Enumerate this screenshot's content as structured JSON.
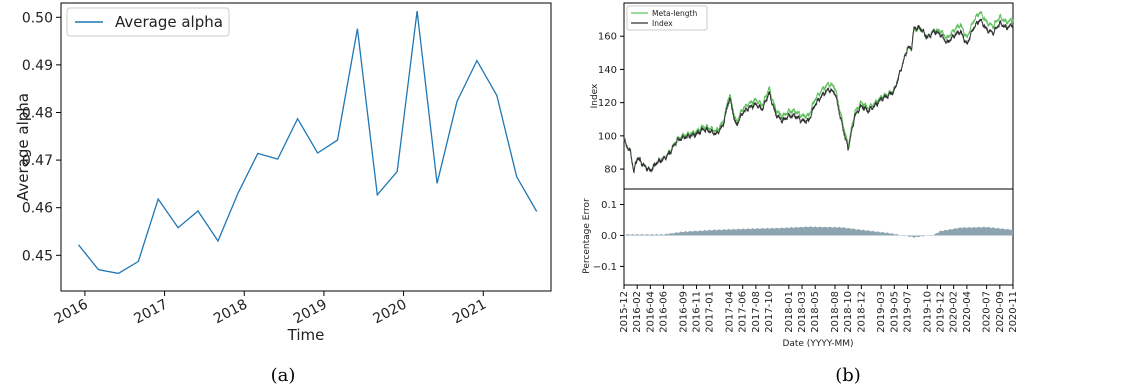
{
  "captions": {
    "a": "(a)",
    "b": "(b)"
  },
  "chart_data": [
    {
      "type": "line",
      "xlabel": "Time",
      "ylabel": "Average alpha",
      "legend": "top-left",
      "grid": false,
      "xlim": [
        2015.7,
        2021.85
      ],
      "ylim": [
        0.4425,
        0.503
      ],
      "xticks": [
        2016,
        2017,
        2018,
        2019,
        2020,
        2021
      ],
      "xtick_labels": [
        "2016",
        "2017",
        "2018",
        "2019",
        "2020",
        "2021"
      ],
      "yticks": [
        0.45,
        0.46,
        0.47,
        0.48,
        0.49,
        0.5
      ],
      "ytick_labels": [
        "0.45",
        "0.46",
        "0.47",
        "0.48",
        "0.49",
        "0.50"
      ],
      "series": [
        {
          "name": "Average alpha",
          "color": "#1f77b4",
          "x": [
            2015.92,
            2016.17,
            2016.42,
            2016.67,
            2016.92,
            2017.17,
            2017.42,
            2017.67,
            2017.92,
            2018.17,
            2018.42,
            2018.67,
            2018.92,
            2019.17,
            2019.42,
            2019.67,
            2019.92,
            2020.17,
            2020.42,
            2020.67,
            2020.92,
            2021.17,
            2021.42,
            2021.67
          ],
          "y": [
            0.4522,
            0.447,
            0.4462,
            0.4487,
            0.4618,
            0.4558,
            0.4593,
            0.453,
            0.463,
            0.4714,
            0.4702,
            0.4787,
            0.4715,
            0.4742,
            0.4976,
            0.4627,
            0.4676,
            0.5013,
            0.4651,
            0.4823,
            0.4909,
            0.4836,
            0.4665,
            0.4592
          ]
        }
      ]
    },
    {
      "type": "line",
      "ylabel": "Index",
      "legend": "top-left",
      "grid": false,
      "x_start": "2015-12",
      "x_end": "2020-11",
      "ylim": [
        68,
        180
      ],
      "yticks": [
        80,
        100,
        120,
        140,
        160
      ],
      "ytick_labels": [
        "80",
        "100",
        "120",
        "140",
        "160"
      ],
      "anchors_month": [
        0,
        1,
        1.5,
        2,
        3,
        4,
        5,
        6,
        7,
        8,
        9,
        10,
        11,
        12,
        13,
        14,
        15,
        16,
        17,
        18,
        19,
        20,
        21,
        22,
        23,
        24,
        25,
        26,
        27,
        28,
        29,
        30,
        31,
        32,
        33,
        34,
        35,
        36,
        37,
        38,
        39,
        40,
        41,
        42,
        43,
        43.6,
        44,
        45,
        46,
        47,
        48,
        49,
        50,
        51,
        52,
        53,
        54,
        55,
        56,
        57,
        58,
        59
      ],
      "anchors_index": [
        97,
        90,
        78,
        87,
        82,
        79,
        84,
        86,
        90,
        97,
        99,
        100,
        101,
        104,
        103,
        101,
        106,
        123,
        106,
        114,
        117,
        119,
        116,
        126,
        113,
        109,
        112,
        112,
        109,
        109,
        119,
        124,
        128,
        126,
        108,
        92,
        112,
        118,
        115,
        118,
        122,
        124,
        127,
        140,
        153,
        153,
        165,
        165,
        159,
        163,
        161,
        156,
        160,
        163,
        155,
        165,
        170,
        164,
        162,
        168,
        165,
        167
      ],
      "series": [
        {
          "name": "Meta-length",
          "color": "#5fc05f"
        },
        {
          "name": "Index",
          "color": "#333333"
        }
      ]
    },
    {
      "type": "bar",
      "xlabel": "Date (YYYY-MM)",
      "ylabel": "Percentage Error",
      "ylim": [
        -0.16,
        0.15
      ],
      "yticks": [
        0.1,
        0.0,
        -0.1
      ],
      "ytick_labels": [
        "0.1",
        "0.0",
        "−0.1"
      ],
      "color": "#8ca4b0",
      "anchors_month": [
        0,
        6,
        9,
        14,
        20,
        24,
        28,
        33,
        36,
        40,
        44,
        47,
        48,
        51,
        55,
        59
      ],
      "anchors_error": [
        0.003,
        0.003,
        0.012,
        0.018,
        0.022,
        0.024,
        0.028,
        0.026,
        0.018,
        0.008,
        -0.006,
        0.002,
        0.014,
        0.025,
        0.027,
        0.018
      ],
      "xtick_labels": [
        "2015-12",
        "2016-02",
        "2016-04",
        "2016-06",
        "2016-09",
        "2016-11",
        "2017-01",
        "2017-04",
        "2017-06",
        "2017-08",
        "2017-10",
        "2018-01",
        "2018-03",
        "2018-05",
        "2018-08",
        "2018-10",
        "2018-12",
        "2019-03",
        "2019-05",
        "2019-07",
        "2019-10",
        "2019-12",
        "2020-02",
        "2020-04",
        "2020-07",
        "2020-09",
        "2020-11"
      ],
      "xtick_months": [
        0,
        2,
        4,
        6,
        9,
        11,
        13,
        16,
        18,
        20,
        22,
        25,
        27,
        29,
        32,
        34,
        36,
        39,
        41,
        43,
        46,
        48,
        50,
        52,
        55,
        57,
        59
      ]
    }
  ]
}
